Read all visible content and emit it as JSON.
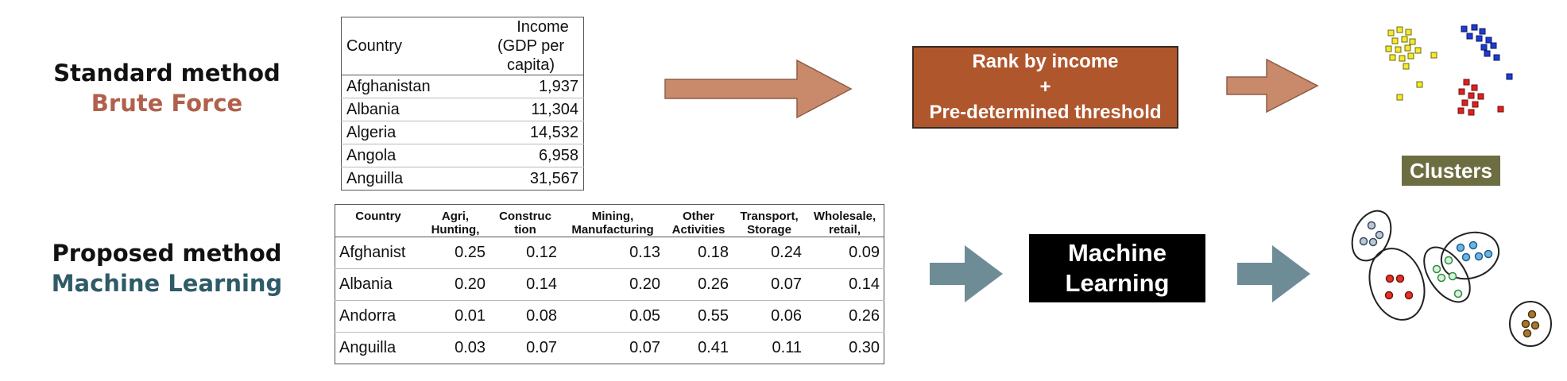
{
  "standard": {
    "title": "Standard method",
    "subtitle": "Brute Force"
  },
  "proposed": {
    "title": "Proposed method",
    "subtitle": "Machine Learning"
  },
  "income_table": {
    "header": {
      "country": "Country",
      "income_line1": "Income",
      "income_line2": "(GDP per capita)"
    },
    "rows": [
      {
        "country": "Afghanistan",
        "income": "1,937"
      },
      {
        "country": "Albania",
        "income": "11,304"
      },
      {
        "country": "Algeria",
        "income": "14,532"
      },
      {
        "country": "Angola",
        "income": "6,958"
      },
      {
        "country": "Anguilla",
        "income": "31,567"
      }
    ]
  },
  "sector_table": {
    "headers": [
      {
        "line1": "Country",
        "line2": ""
      },
      {
        "line1": "Agri,",
        "line2": "Hunting,"
      },
      {
        "line1": "Construc",
        "line2": "tion"
      },
      {
        "line1": "Mining,",
        "line2": "Manufacturing"
      },
      {
        "line1": "Other",
        "line2": "Activities"
      },
      {
        "line1": "Transport,",
        "line2": "Storage"
      },
      {
        "line1": "Wholesale,",
        "line2": "retail,"
      }
    ],
    "rows": [
      {
        "country": "Afghanist",
        "values": [
          "0.25",
          "0.12",
          "0.13",
          "0.18",
          "0.24",
          "0.09"
        ]
      },
      {
        "country": "Albania",
        "values": [
          "0.20",
          "0.14",
          "0.20",
          "0.26",
          "0.07",
          "0.14"
        ]
      },
      {
        "country": "Andorra",
        "values": [
          "0.01",
          "0.08",
          "0.05",
          "0.55",
          "0.06",
          "0.26"
        ]
      },
      {
        "country": "Anguilla",
        "values": [
          "0.03",
          "0.07",
          "0.07",
          "0.41",
          "0.11",
          "0.30"
        ]
      }
    ]
  },
  "rank_box": {
    "line1": "Rank by income",
    "line2": "+",
    "line3": "Pre-determined threshold"
  },
  "ml_box": {
    "line1": "Machine",
    "line2": "Learning"
  },
  "clusters_label": "Clusters",
  "colors": {
    "brute_force": "#b0604b",
    "machine_learning": "#2e5b67",
    "arrow_top": "#c98a6b",
    "arrow_bottom": "#6e8c96",
    "rank_box": "#b0562d",
    "clusters_box": "#6d6d42"
  }
}
